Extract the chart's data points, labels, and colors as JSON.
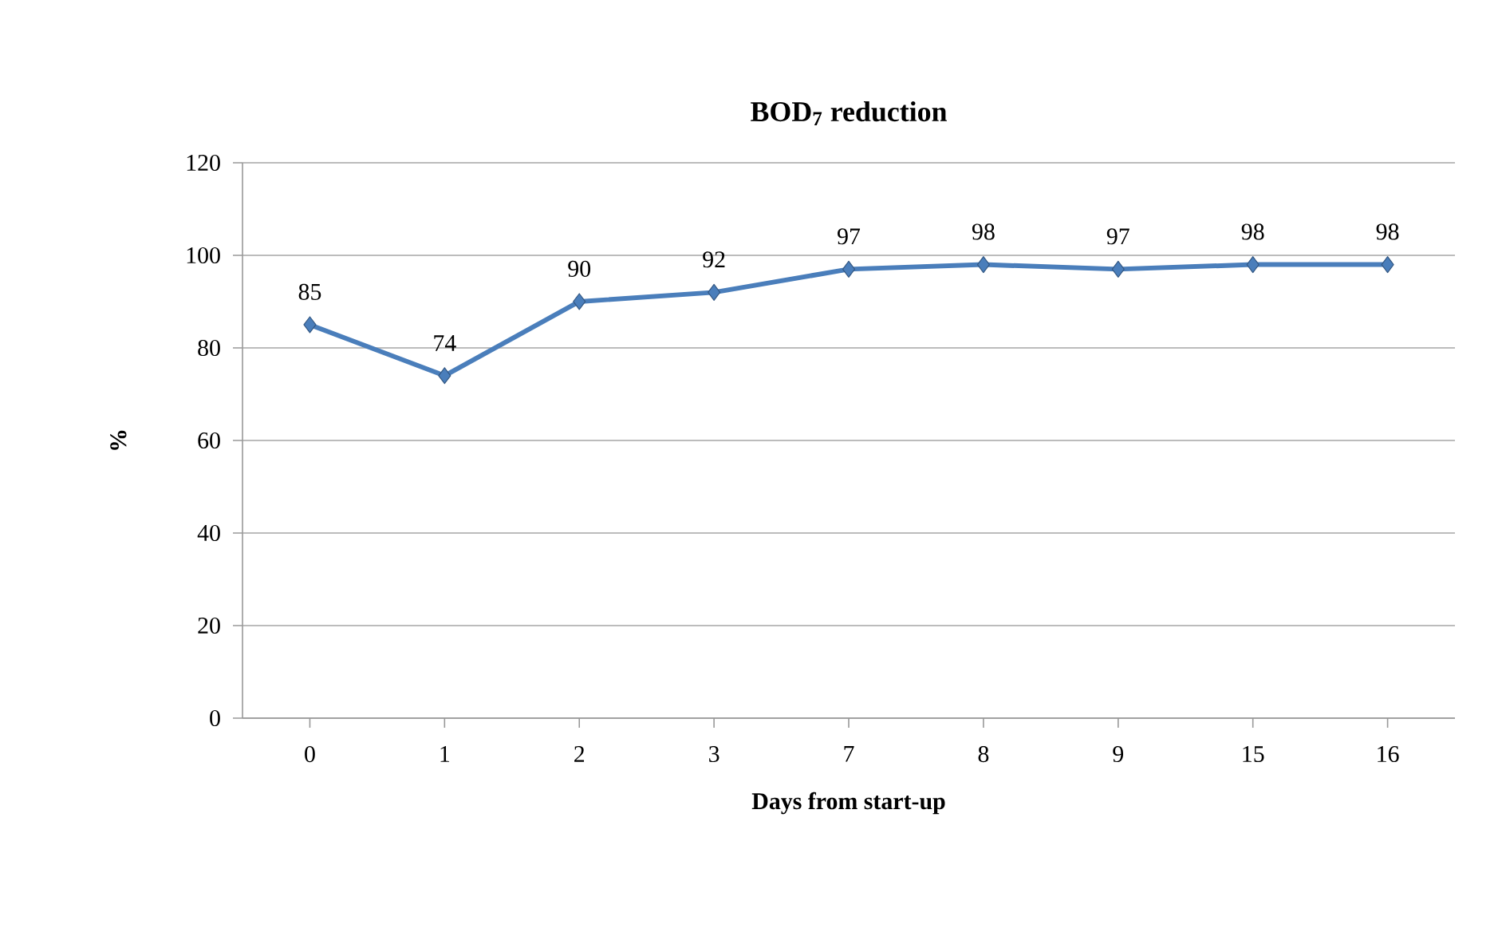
{
  "chart_data": {
    "type": "line",
    "title": "BOD$_{7}$ reduction",
    "xlabel": "Days from start-up",
    "ylabel": "%",
    "categories": [
      "0",
      "1",
      "2",
      "3",
      "7",
      "8",
      "9",
      "15",
      "16"
    ],
    "values": [
      85,
      74,
      90,
      92,
      97,
      98,
      97,
      98,
      98
    ],
    "color": "#4a7ebb",
    "marker": "diamond",
    "line_style": "solid",
    "data_labels": true,
    "grid": "y",
    "ylim": [
      0,
      120
    ],
    "yticks": [
      0,
      20,
      40,
      60,
      80,
      100,
      120
    ]
  }
}
